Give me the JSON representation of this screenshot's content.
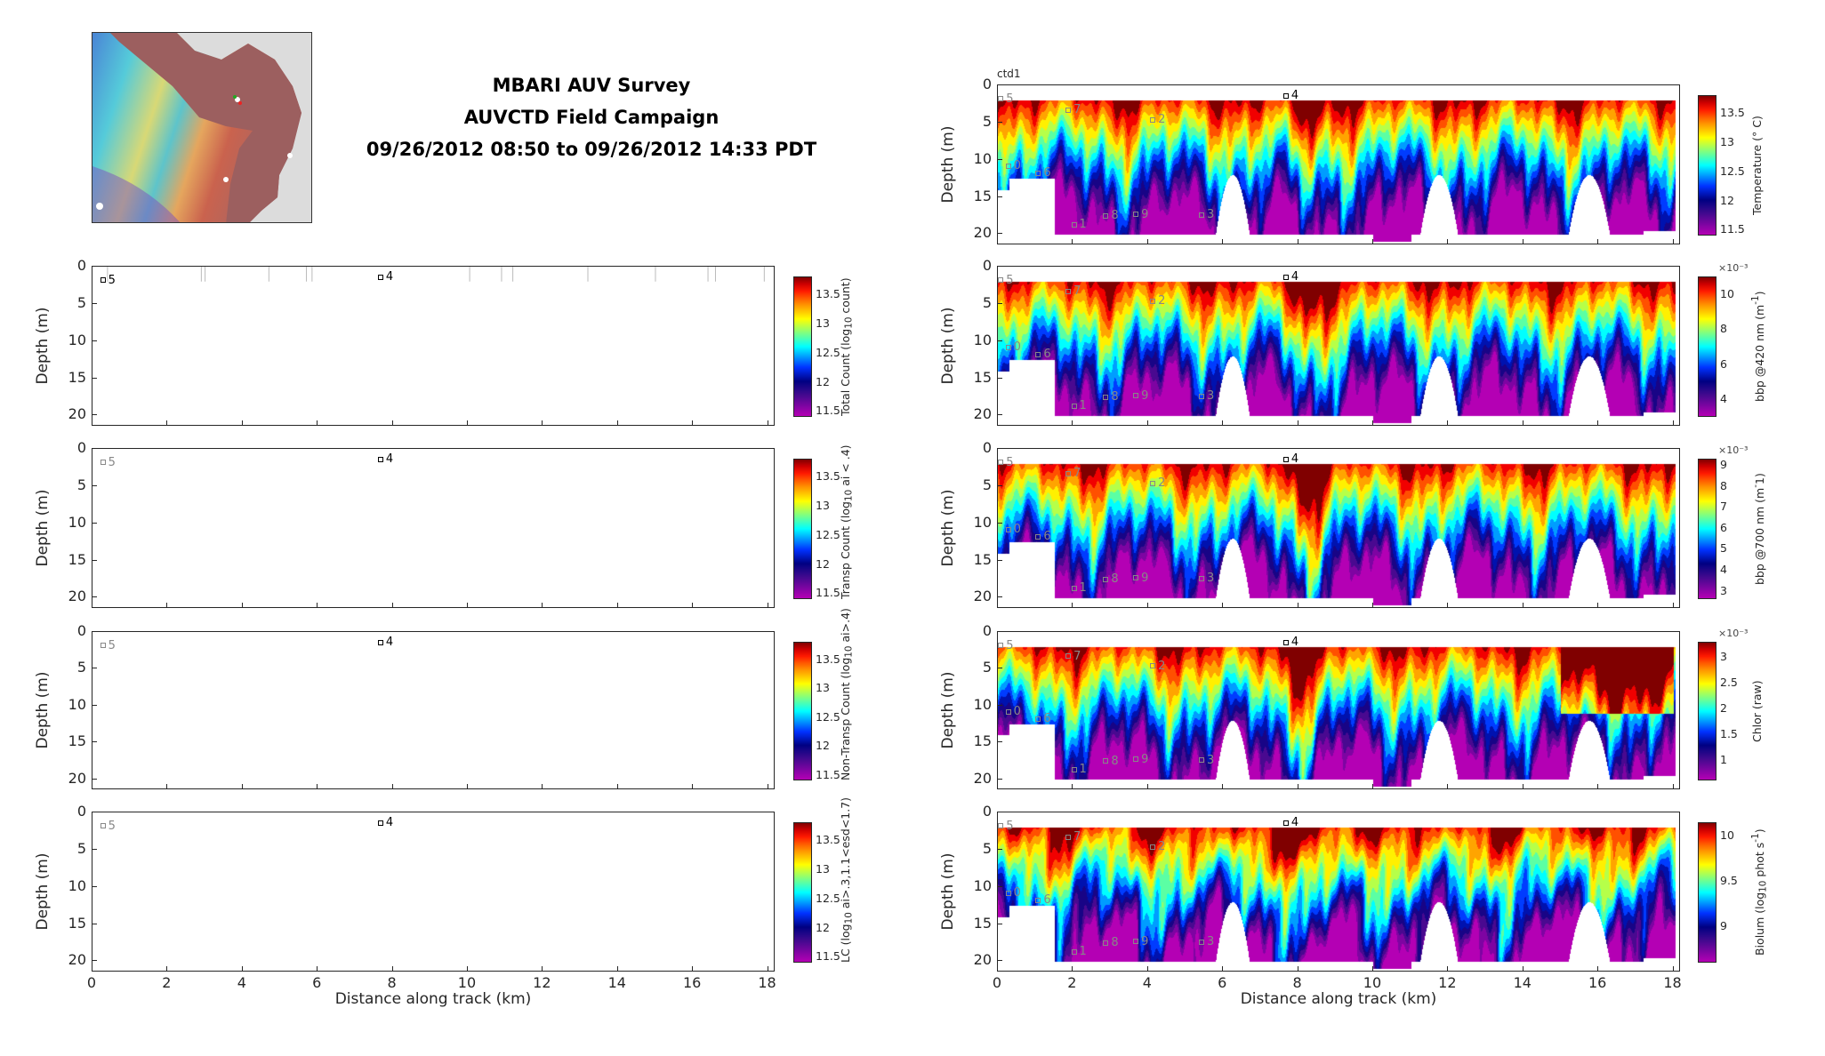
{
  "header": {
    "title_lines": [
      "MBARI AUV Survey",
      "AUVCTD Field Campaign",
      "09/26/2012 08:50 to 09/26/2012 14:33 PDT"
    ]
  },
  "axes_common": {
    "xlabel": "Distance along track (km)",
    "ylabel": "Depth (m)",
    "xlim": [
      0,
      18.2
    ],
    "ylim": [
      0,
      21.5
    ],
    "xticks": [
      "0",
      "2",
      "4",
      "6",
      "8",
      "10",
      "12",
      "14",
      "16",
      "18"
    ],
    "yticks": [
      "0",
      "5",
      "10",
      "15",
      "20"
    ]
  },
  "chart_data": [
    {
      "id": "total-count",
      "type": "heatmap",
      "column": "left",
      "empty": true,
      "label": [
        {
          "t": "Total Count (log"
        },
        {
          "sub": "10"
        },
        {
          "t": " count)"
        }
      ],
      "clim": [
        11.4,
        13.8
      ],
      "cticks": [
        "11.5",
        "12",
        "12.5",
        "13",
        "13.5"
      ],
      "markers": [
        {
          "km": 0.3,
          "depth": 2,
          "label": "5",
          "dark": true
        },
        {
          "km": 7.7,
          "depth": 1.6,
          "label": "4",
          "dark": true
        }
      ],
      "show_xlabel": false
    },
    {
      "id": "transp-count",
      "type": "heatmap",
      "column": "left",
      "empty": true,
      "label": [
        {
          "t": "Transp Count (log"
        },
        {
          "sub": "10"
        },
        {
          "t": " ai < .4)"
        }
      ],
      "clim": [
        11.4,
        13.8
      ],
      "cticks": [
        "11.5",
        "12",
        "12.5",
        "13",
        "13.5"
      ],
      "markers": [
        {
          "km": 0.3,
          "depth": 2,
          "label": "5",
          "dark": false
        },
        {
          "km": 7.7,
          "depth": 1.6,
          "label": "4",
          "dark": true
        }
      ],
      "show_xlabel": false
    },
    {
      "id": "non-transp-count",
      "type": "heatmap",
      "column": "left",
      "empty": true,
      "label": [
        {
          "t": "Non-Transp Count (log"
        },
        {
          "sub": "10"
        },
        {
          "t": " ai>.4)"
        }
      ],
      "clim": [
        11.4,
        13.8
      ],
      "cticks": [
        "11.5",
        "12",
        "12.5",
        "13",
        "13.5"
      ],
      "markers": [
        {
          "km": 0.3,
          "depth": 2,
          "label": "5",
          "dark": false
        },
        {
          "km": 7.7,
          "depth": 1.6,
          "label": "4",
          "dark": true
        }
      ],
      "show_xlabel": false
    },
    {
      "id": "lc-count",
      "type": "heatmap",
      "column": "left",
      "empty": true,
      "label": [
        {
          "t": "LC (log"
        },
        {
          "sub": "10"
        },
        {
          "t": " ai>.3,1.1<esd<1.7)"
        }
      ],
      "clim": [
        11.4,
        13.8
      ],
      "cticks": [
        "11.5",
        "12",
        "12.5",
        "13",
        "13.5"
      ],
      "markers": [
        {
          "km": 0.3,
          "depth": 2,
          "label": "5",
          "dark": false
        },
        {
          "km": 7.7,
          "depth": 1.6,
          "label": "4",
          "dark": true
        }
      ],
      "show_xlabel": true
    },
    {
      "id": "temperature",
      "type": "heatmap",
      "column": "right",
      "tag": "ctd1",
      "label": [
        {
          "t": "Temperature (° C)"
        }
      ],
      "clim": [
        11.4,
        13.8
      ],
      "cticks": [
        "11.5",
        "12",
        "12.5",
        "13",
        "13.5"
      ],
      "seed": 1,
      "show_xlabel": false
    },
    {
      "id": "bbp420",
      "type": "heatmap",
      "column": "right",
      "label": [
        {
          "t": "bbp @420 nm (m"
        },
        {
          "sup": "-1"
        },
        {
          "t": ")"
        }
      ],
      "clim": [
        3,
        11
      ],
      "cticks": [
        "4",
        "6",
        "8",
        "10"
      ],
      "exponent": "×10⁻³",
      "seed": 2,
      "show_xlabel": false
    },
    {
      "id": "bbp700",
      "type": "heatmap",
      "column": "right",
      "label": [
        {
          "t": "bbp @700 nm (m"
        },
        {
          "sup": "-"
        },
        {
          "t": "1)"
        }
      ],
      "clim": [
        2.6,
        9.3
      ],
      "cticks": [
        "3",
        "4",
        "5",
        "6",
        "7",
        "8",
        "9"
      ],
      "exponent": "×10⁻³",
      "seed": 3,
      "show_xlabel": false
    },
    {
      "id": "chlor",
      "type": "heatmap",
      "column": "right",
      "label": [
        {
          "t": "Chlor (raw)"
        }
      ],
      "clim": [
        0.6,
        3.3
      ],
      "cticks": [
        "1",
        "1.5",
        "2",
        "2.5",
        "3"
      ],
      "exponent": "×10⁻³",
      "seed": 4,
      "show_xlabel": false
    },
    {
      "id": "biolum",
      "type": "heatmap",
      "column": "right",
      "label": [
        {
          "t": "Biolum (log"
        },
        {
          "sub": "10"
        },
        {
          "t": " phot s"
        },
        {
          "sup": "-1"
        },
        {
          "t": ")"
        }
      ],
      "clim": [
        8.6,
        10.15
      ],
      "cticks": [
        "9",
        "9.5",
        "10"
      ],
      "seed": 5,
      "show_xlabel": true
    }
  ],
  "right_markers": [
    {
      "km": 0.1,
      "depth": 2,
      "label": "5"
    },
    {
      "km": 1.9,
      "depth": 3.5,
      "label": "7"
    },
    {
      "km": 4.15,
      "depth": 4.8,
      "label": "2"
    },
    {
      "km": 7.7,
      "depth": 1.6,
      "label": "4",
      "dark": true
    },
    {
      "km": 0.3,
      "depth": 11,
      "label": "0"
    },
    {
      "km": 1.1,
      "depth": 12,
      "label": "6"
    },
    {
      "km": 2.05,
      "depth": 18.9,
      "label": "1"
    },
    {
      "km": 2.9,
      "depth": 17.7,
      "label": "8"
    },
    {
      "km": 3.7,
      "depth": 17.5,
      "label": "9"
    },
    {
      "km": 5.45,
      "depth": 17.6,
      "label": "3"
    }
  ]
}
